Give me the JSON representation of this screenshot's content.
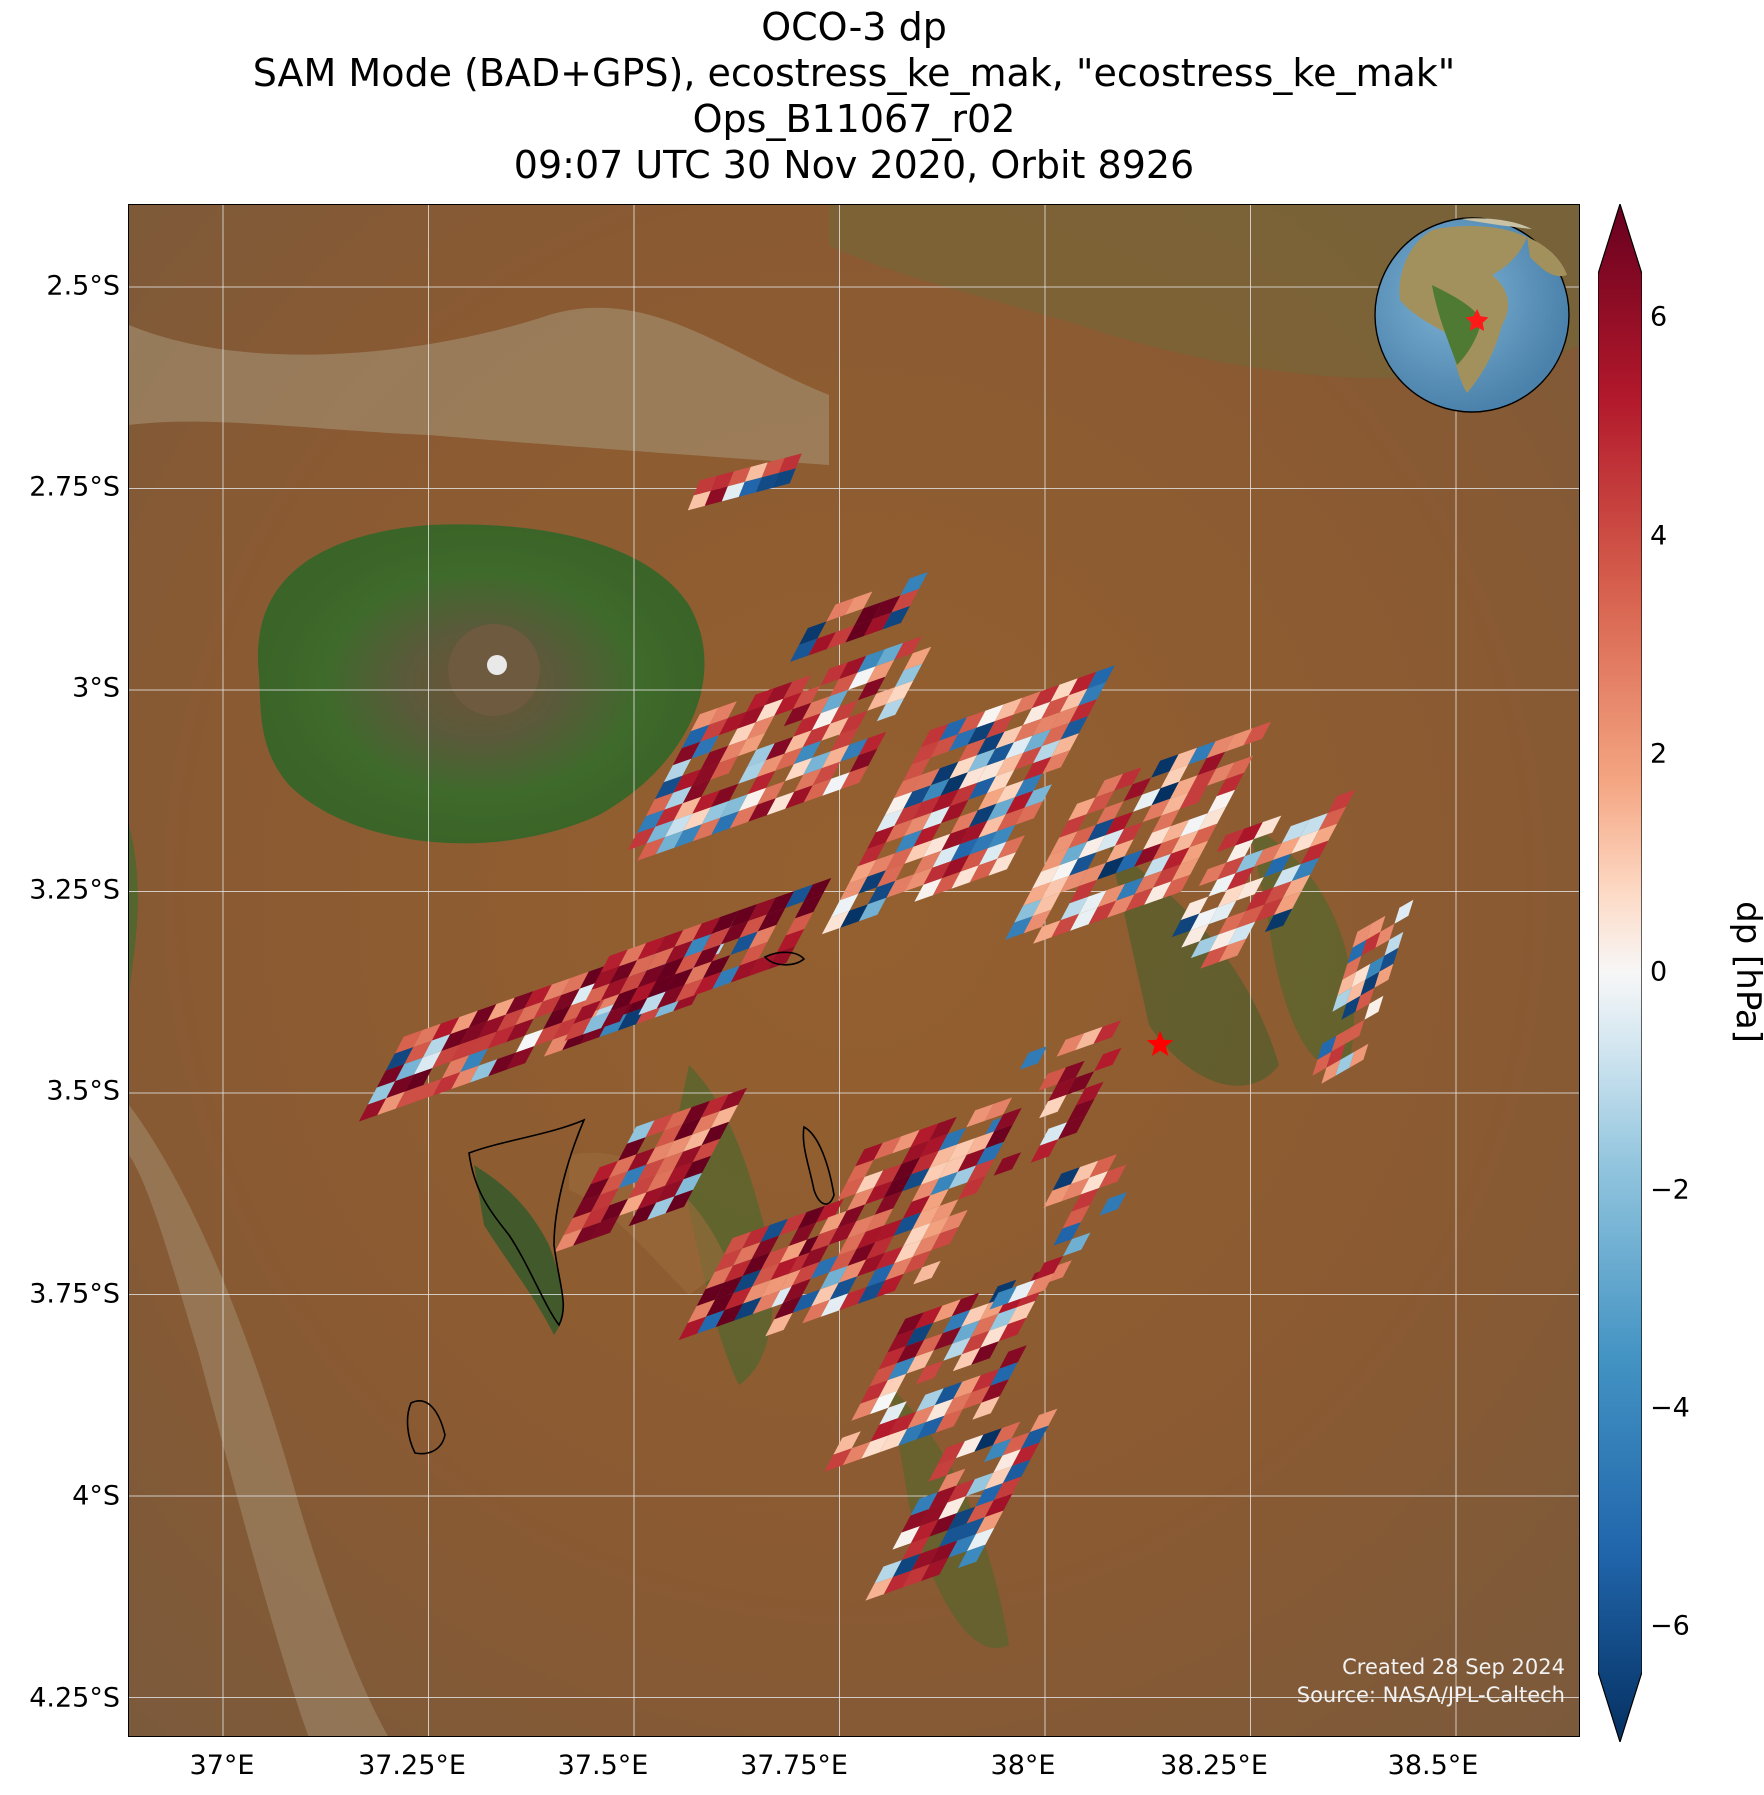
{
  "title": {
    "line1": "OCO-3 dp",
    "line2": "SAM Mode (BAD+GPS), ecostress_ke_mak, \"ecostress_ke_mak\"",
    "line3": "Ops_B11067_r02",
    "line4": "09:07 UTC 30 Nov 2020, Orbit 8926"
  },
  "axes": {
    "lat_ticks": [
      "2.5°S",
      "2.75°S",
      "3°S",
      "3.25°S",
      "3.5°S",
      "3.75°S",
      "4°S",
      "4.25°S"
    ],
    "lon_ticks": [
      "37°E",
      "37.25°E",
      "37.5°E",
      "37.75°E",
      "38°E",
      "38.25°E",
      "38.5°E"
    ]
  },
  "credits": {
    "created": "Created 28 Sep 2024",
    "source": "Source: NASA/JPL-Caltech"
  },
  "target_marker": {
    "symbol": "star",
    "lon": 38.14,
    "lat": -3.44,
    "color": "#ff0000"
  },
  "colorbar": {
    "label": "dp [hPa]",
    "ticks": [
      "6",
      "4",
      "2",
      "0",
      "−2",
      "−4",
      "−6"
    ],
    "range": [
      -6.5,
      6.5
    ],
    "cmap": "RdBu_r",
    "extend": "both"
  },
  "colors": {
    "land_base": "#8a5a32",
    "vegetation": "#3e6a2b",
    "grid": "#e6e6e6"
  }
}
